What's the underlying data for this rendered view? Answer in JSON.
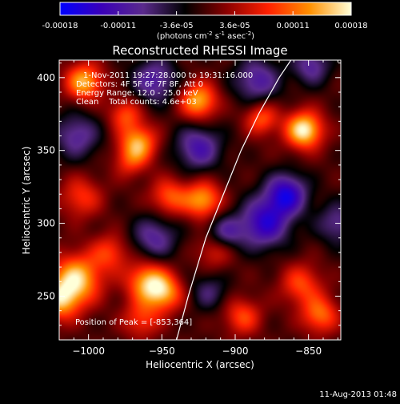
{
  "chart_data": {
    "type": "heatmap",
    "title": "Reconstructed RHESSI Image",
    "xlabel": "Heliocentric X (arcsec)",
    "ylabel": "Heliocentric Y (arcsec)",
    "xlim": [
      -1020,
      -828
    ],
    "ylim": [
      220,
      412
    ],
    "x_ticks": [
      -1000,
      -950,
      -900,
      -850
    ],
    "y_ticks": [
      250,
      300,
      350,
      400
    ],
    "annotations": [
      "1-Nov-2011 19:27:28.000 to 19:31:16.000",
      "Detectors: 4F 5F 6F 7F 8F, Att 0",
      "Energy Range: 12.0 - 25.0 keV",
      "Clean    Total counts: 4.6e+03"
    ],
    "peak_label": "Position of Peak = [-853,364]",
    "peak": [
      -853,
      364
    ],
    "footer": "11-Aug-2013 01:48",
    "colorbar": {
      "range": [
        -0.00018,
        0.00018
      ],
      "ticks": [
        "-0.00018",
        "-0.00011",
        "-3.6e-05",
        "3.6e-05",
        "0.00011",
        "0.00018"
      ],
      "unit": "(photons cm-2 s-1 asec-2)",
      "stops": [
        "#0000ff",
        "#3a00b8",
        "#5a2a8c",
        "#000000",
        "#8a0000",
        "#ff2000",
        "#ff9000",
        "#ffffd8"
      ]
    },
    "limb": [
      [
        -940,
        220
      ],
      [
        -932,
        250
      ],
      [
        -920,
        290
      ],
      [
        -908,
        320
      ],
      [
        -896,
        350
      ],
      [
        -884,
        375
      ],
      [
        -870,
        400
      ],
      [
        -862,
        412
      ]
    ],
    "sources": [
      [
        -853,
        364,
        1.0,
        9
      ],
      [
        -925,
        384,
        0.8,
        9
      ],
      [
        -1003,
        397,
        0.8,
        9
      ],
      [
        -975,
        375,
        0.5,
        8
      ],
      [
        -966,
        355,
        0.75,
        9
      ],
      [
        -882,
        372,
        0.55,
        8
      ],
      [
        -1005,
        318,
        0.45,
        10
      ],
      [
        -972,
        342,
        0.35,
        8
      ],
      [
        -945,
        318,
        0.55,
        9
      ],
      [
        -922,
        316,
        0.75,
        9
      ],
      [
        -1008,
        262,
        0.85,
        12
      ],
      [
        -985,
        280,
        0.45,
        9
      ],
      [
        -960,
        260,
        0.75,
        10
      ],
      [
        -948,
        252,
        0.65,
        9
      ],
      [
        -913,
        283,
        0.5,
        9
      ],
      [
        -855,
        258,
        0.5,
        10
      ],
      [
        -842,
        237,
        0.6,
        9
      ],
      [
        -895,
        236,
        0.5,
        9
      ],
      [
        -964,
        234,
        0.45,
        9
      ],
      [
        -1020,
        247,
        0.7,
        10
      ],
      [
        -880,
        300,
        -0.75,
        12
      ],
      [
        -865,
        320,
        -0.8,
        10
      ],
      [
        -908,
        292,
        -0.6,
        9
      ],
      [
        -955,
        290,
        -0.5,
        11
      ],
      [
        -925,
        352,
        -0.6,
        11
      ],
      [
        -955,
        398,
        -0.55,
        11
      ],
      [
        -1008,
        360,
        -0.5,
        11
      ],
      [
        -885,
        398,
        -0.55,
        11
      ],
      [
        -848,
        408,
        -0.5,
        9
      ],
      [
        -830,
        300,
        -0.45,
        10
      ],
      [
        -918,
        253,
        -0.35,
        9
      ]
    ]
  }
}
